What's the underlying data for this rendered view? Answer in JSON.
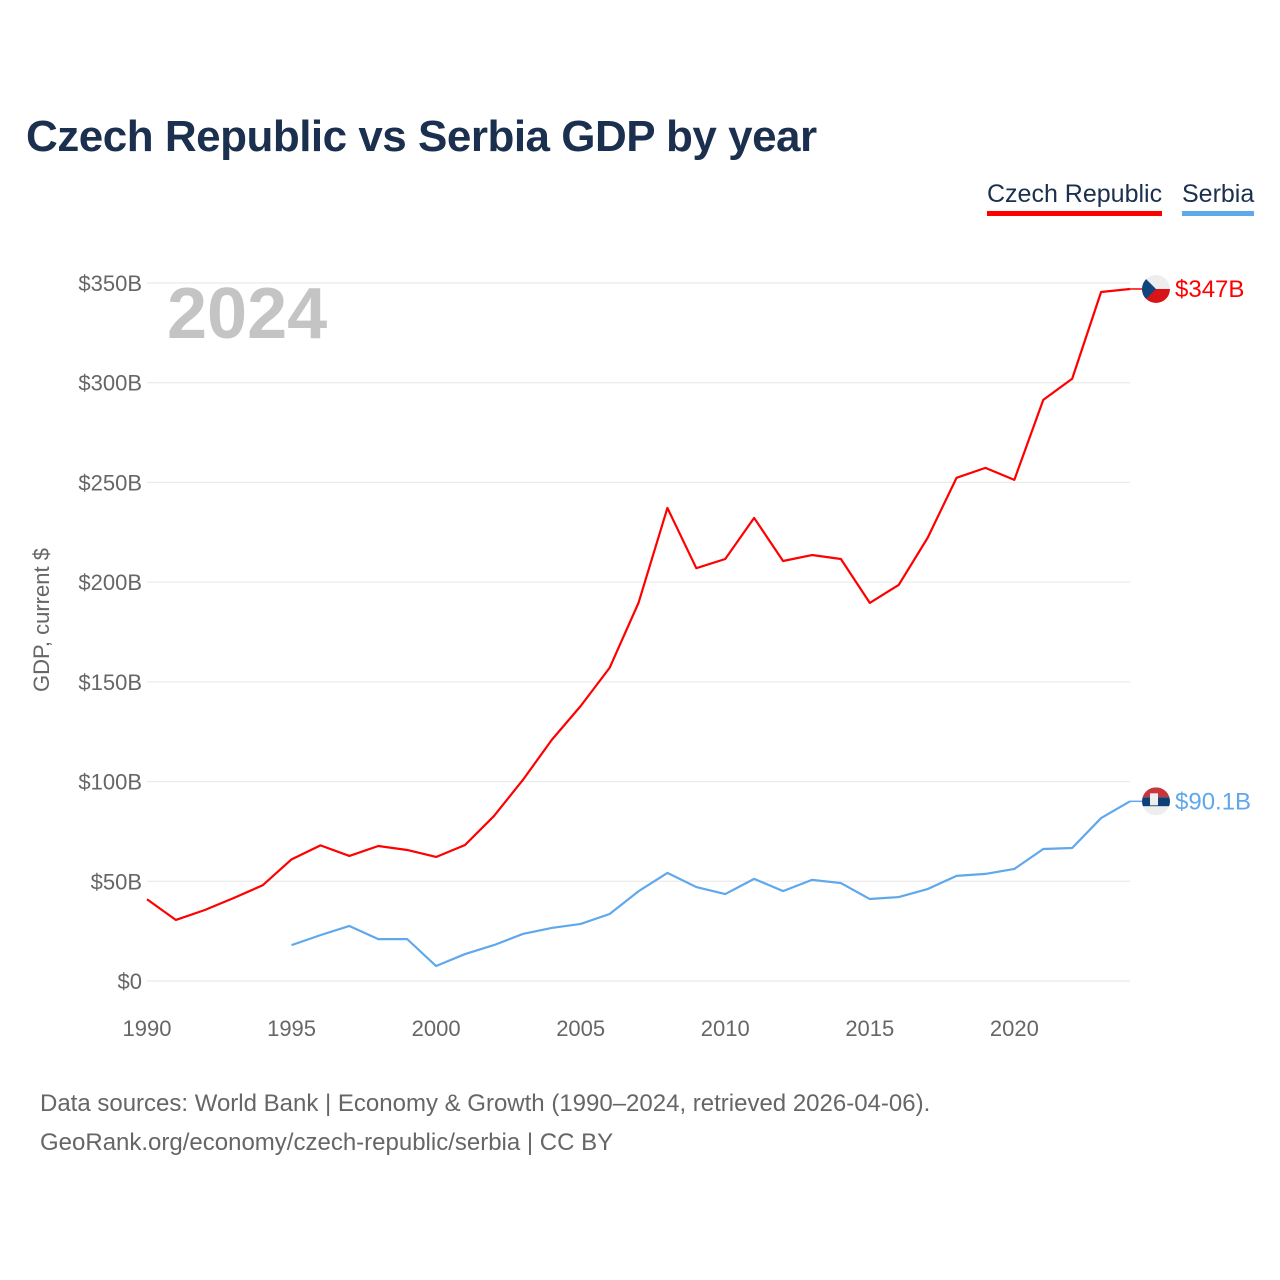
{
  "title": "Czech Republic vs Serbia GDP by year",
  "legend": [
    "Czech Republic",
    "Serbia"
  ],
  "year_watermark": "2024",
  "source_line1": "Data sources: World Bank | Economy & Growth (1990–2024, retrieved 2026-04-06).",
  "source_line2": "GeoRank.org/economy/czech-republic/serbia | CC BY",
  "chart_data": {
    "type": "line",
    "title": "Czech Republic vs Serbia GDP by year",
    "xlabel": "",
    "ylabel": "GDP, current $",
    "xlim": [
      1990,
      2024
    ],
    "ylim": [
      0,
      350
    ],
    "x_ticks": [
      "1990",
      "1995",
      "2000",
      "2005",
      "2010",
      "2015",
      "2020"
    ],
    "y_ticks": [
      "$0",
      "$50B",
      "$100B",
      "$150B",
      "$200B",
      "$250B",
      "$300B",
      "$350B"
    ],
    "grid": true,
    "legend_position": "top-right",
    "series": [
      {
        "name": "Czech Republic",
        "color": "#ff0000",
        "end_label": "$347B",
        "start_year": 1990,
        "values": [
          41,
          30.6,
          35.6,
          41.6,
          48,
          61,
          68,
          62.7,
          67.7,
          65.7,
          62.2,
          68.2,
          82.7,
          100.8,
          120.9,
          137.9,
          157,
          189.6,
          237.2,
          207,
          211.6,
          232.2,
          210.6,
          213.6,
          211.6,
          189.6,
          198.6,
          222.2,
          252.3,
          257.3,
          251.3,
          291.4,
          302,
          345.5,
          347
        ]
      },
      {
        "name": "Serbia",
        "color": "#5fa8ec",
        "end_label": "$90.1B",
        "start_year": 1995,
        "values": [
          18,
          23,
          27.6,
          21,
          21,
          7.5,
          13.5,
          18,
          23.6,
          26.6,
          28.6,
          33.6,
          45,
          54.2,
          47.1,
          43.6,
          51.2,
          45.1,
          50.7,
          49.1,
          41.1,
          42.1,
          46.1,
          52.7,
          53.7,
          56.2,
          66.2,
          66.7,
          81.7,
          90.1
        ]
      }
    ]
  }
}
